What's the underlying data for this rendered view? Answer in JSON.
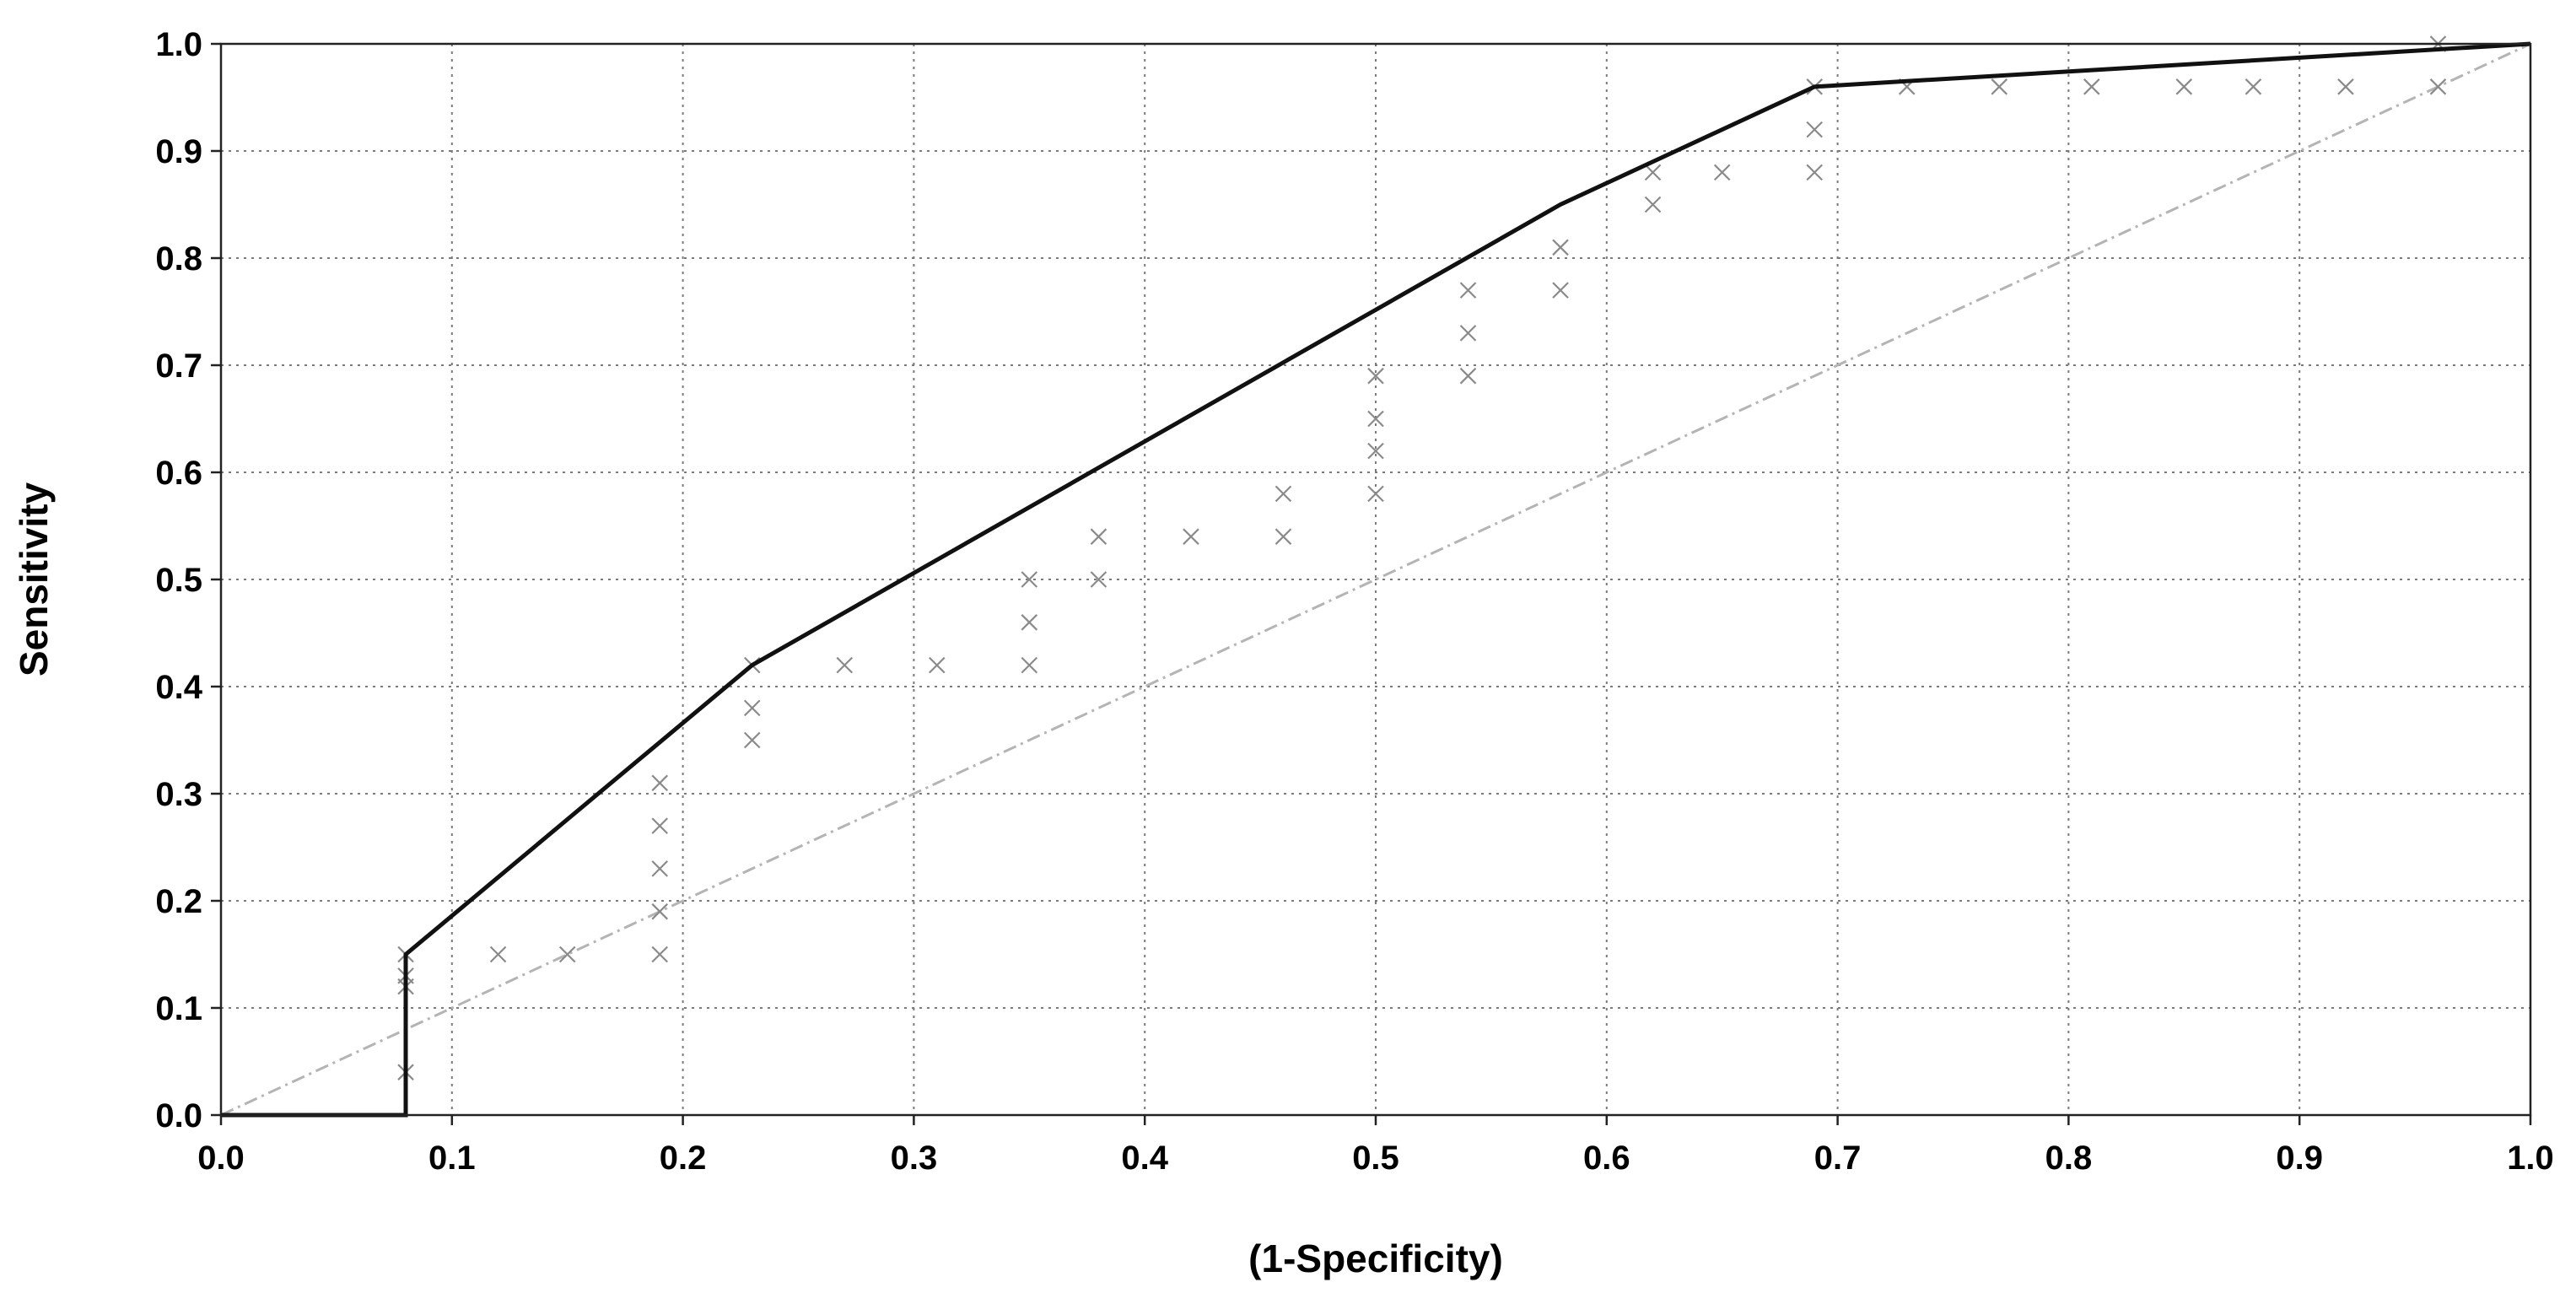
{
  "chart_data": {
    "type": "line",
    "title": "",
    "xlabel": "(1-Specificity)",
    "ylabel": "Sensitivity",
    "xlim": [
      0,
      1
    ],
    "ylim": [
      0,
      1
    ],
    "grid": true,
    "x_ticks": [
      "0.0",
      "0.1",
      "0.2",
      "0.3",
      "0.4",
      "0.5",
      "0.6",
      "0.7",
      "0.8",
      "0.9",
      "1.0"
    ],
    "y_ticks": [
      "0.0",
      "0.1",
      "0.2",
      "0.3",
      "0.4",
      "0.5",
      "0.6",
      "0.7",
      "0.8",
      "0.9",
      "1.0"
    ],
    "series": [
      {
        "kind": "curve",
        "color": "#111111",
        "x": [
          0.0,
          0.08,
          0.08,
          0.23,
          0.58,
          0.69,
          1.0
        ],
        "y": [
          0.0,
          0.0,
          0.15,
          0.42,
          0.85,
          0.96,
          1.0
        ]
      },
      {
        "kind": "points",
        "marker": "x",
        "color": "#8a8a8a",
        "x": [
          0.08,
          0.08,
          0.08,
          0.08,
          0.12,
          0.15,
          0.19,
          0.19,
          0.19,
          0.19,
          0.19,
          0.23,
          0.23,
          0.23,
          0.27,
          0.31,
          0.35,
          0.35,
          0.35,
          0.38,
          0.38,
          0.42,
          0.46,
          0.46,
          0.5,
          0.5,
          0.5,
          0.5,
          0.54,
          0.54,
          0.54,
          0.58,
          0.58,
          0.62,
          0.62,
          0.65,
          0.69,
          0.69,
          0.69,
          0.73,
          0.77,
          0.81,
          0.85,
          0.88,
          0.92,
          0.96,
          0.96
        ],
        "y": [
          0.04,
          0.12,
          0.13,
          0.15,
          0.15,
          0.15,
          0.15,
          0.19,
          0.23,
          0.27,
          0.31,
          0.35,
          0.38,
          0.42,
          0.42,
          0.42,
          0.42,
          0.46,
          0.5,
          0.5,
          0.54,
          0.54,
          0.54,
          0.58,
          0.58,
          0.62,
          0.65,
          0.69,
          0.69,
          0.73,
          0.77,
          0.77,
          0.81,
          0.85,
          0.88,
          0.88,
          0.88,
          0.92,
          0.96,
          0.96,
          0.96,
          0.96,
          0.96,
          0.96,
          0.96,
          0.96,
          1.0
        ]
      },
      {
        "kind": "reference",
        "color": "#b4b4b4",
        "x": [
          0,
          1
        ],
        "y": [
          0,
          1
        ]
      }
    ]
  }
}
